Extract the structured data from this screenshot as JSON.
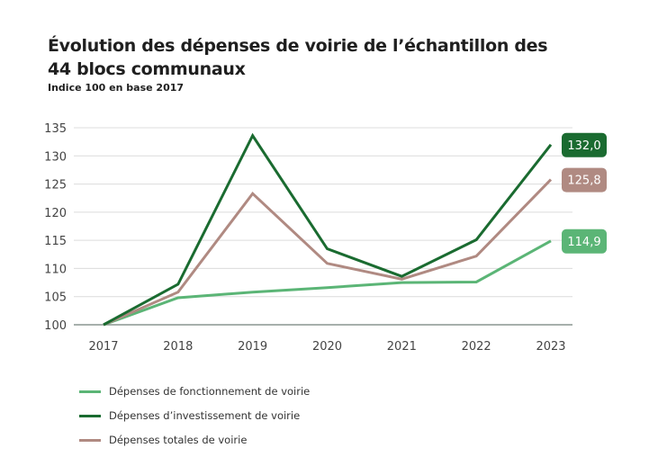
{
  "chart_data": {
    "type": "line",
    "title": "Évolution des dépenses de voirie de l’échantillon des 44 blocs communaux",
    "subtitle": "Indice 100 en base 2017",
    "xlabel": "",
    "ylabel": "",
    "categories": [
      "2017",
      "2018",
      "2019",
      "2020",
      "2021",
      "2022",
      "2023"
    ],
    "ylim": [
      100,
      135
    ],
    "yticks": [
      100,
      105,
      110,
      115,
      120,
      125,
      130,
      135
    ],
    "grid": true,
    "legend_position": "bottom",
    "series": [
      {
        "name": "Dépenses de fonctionnement de voirie",
        "color": "#5bb576",
        "values": [
          100,
          104.8,
          105.8,
          106.6,
          107.5,
          107.6,
          114.9
        ],
        "end_label": "114,9"
      },
      {
        "name": "Dépenses d’investissement de voirie",
        "color": "#1a6b30",
        "values": [
          100,
          107.2,
          133.6,
          113.5,
          108.6,
          115.1,
          132.0
        ],
        "end_label": "132,0"
      },
      {
        "name": "Dépenses totales de voirie",
        "color": "#b08a82",
        "values": [
          100,
          105.8,
          123.3,
          110.9,
          108.1,
          112.2,
          125.8
        ],
        "end_label": "125,8"
      }
    ]
  }
}
